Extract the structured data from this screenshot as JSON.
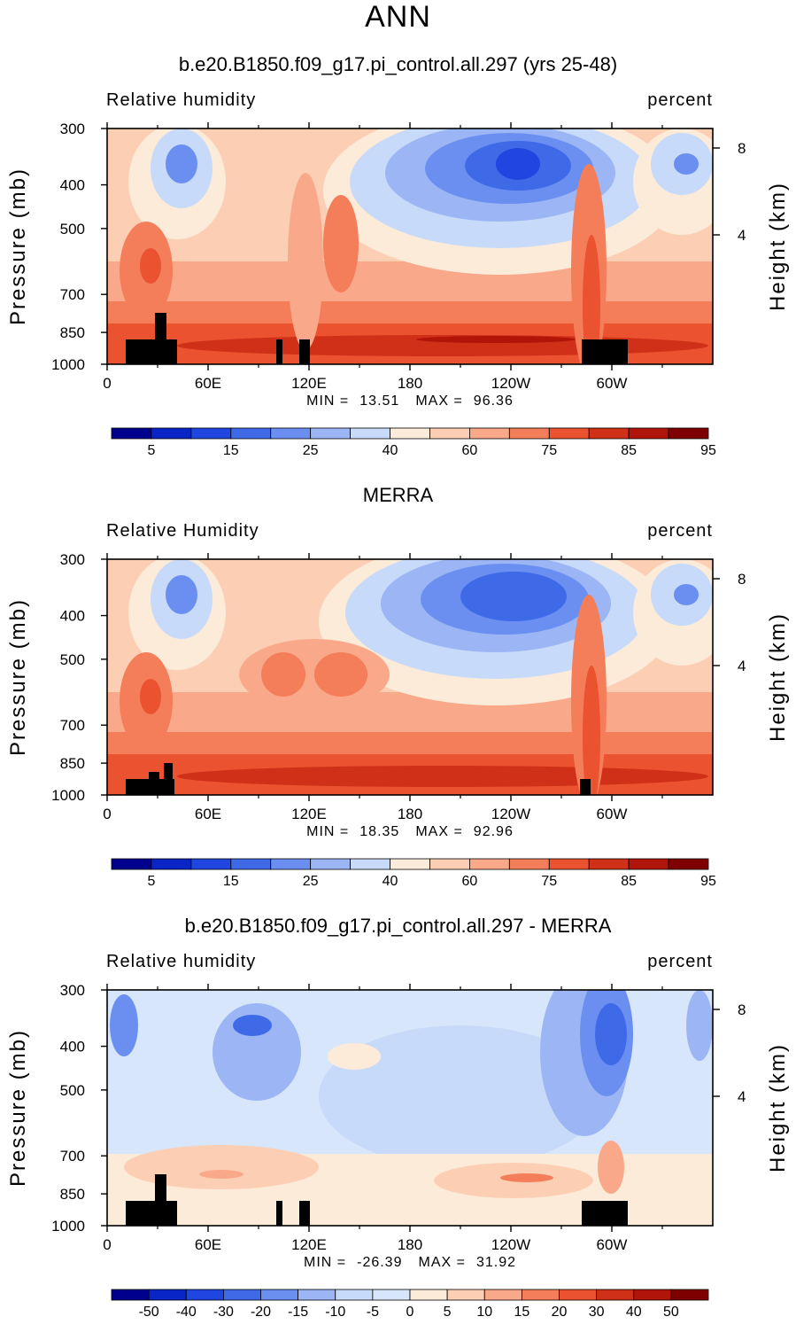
{
  "header": {
    "title": "ANN"
  },
  "chart_data": [
    {
      "type": "heatmap",
      "title": "b.e20.B1850.f09_g17.pi_control.all.297 (yrs 25-48)",
      "left_title": "Relative humidity",
      "right_title": "percent",
      "ylabel": "Pressure (mb)",
      "ylabel_right": "Height (km)",
      "x_ticks": [
        "0",
        "60E",
        "120E",
        "180",
        "120W",
        "60W"
      ],
      "y_ticks": [
        "300",
        "400",
        "500",
        "700",
        "850",
        "1000"
      ],
      "y_ticks_right": [
        "8",
        "4"
      ],
      "min_label": "MIN =",
      "min": "13.51",
      "max_label": "MAX =",
      "max": "96.36",
      "colorbar_labels": [
        "5",
        "15",
        "25",
        "40",
        "60",
        "75",
        "85",
        "95"
      ],
      "colors": [
        "#00008f",
        "#0a25c6",
        "#1f46e0",
        "#3e6ae8",
        "#6a8ff0",
        "#9cb6f5",
        "#c7dafa",
        "#fbebd8",
        "#fccfb5",
        "#f9a98a",
        "#f47e5a",
        "#ea5230",
        "#d03018",
        "#b11408",
        "#7f0000"
      ]
    },
    {
      "type": "heatmap",
      "title": "MERRA",
      "left_title": "Relative Humidity",
      "right_title": "percent",
      "ylabel": "Pressure (mb)",
      "ylabel_right": "Height (km)",
      "x_ticks": [
        "0",
        "60E",
        "120E",
        "180",
        "120W",
        "60W"
      ],
      "y_ticks": [
        "300",
        "400",
        "500",
        "700",
        "850",
        "1000"
      ],
      "y_ticks_right": [
        "8",
        "4"
      ],
      "min_label": "MIN =",
      "min": "18.35",
      "max_label": "MAX =",
      "max": "92.96",
      "colorbar_labels": [
        "5",
        "15",
        "25",
        "40",
        "60",
        "75",
        "85",
        "95"
      ],
      "colors": [
        "#00008f",
        "#0a25c6",
        "#1f46e0",
        "#3e6ae8",
        "#6a8ff0",
        "#9cb6f5",
        "#c7dafa",
        "#fbebd8",
        "#fccfb5",
        "#f9a98a",
        "#f47e5a",
        "#ea5230",
        "#d03018",
        "#b11408",
        "#7f0000"
      ]
    },
    {
      "type": "heatmap",
      "title": "b.e20.B1850.f09_g17.pi_control.all.297 - MERRA",
      "left_title": "Relative humidity",
      "right_title": "percent",
      "ylabel": "Pressure (mb)",
      "ylabel_right": "Height (km)",
      "x_ticks": [
        "0",
        "60E",
        "120E",
        "180",
        "120W",
        "60W"
      ],
      "y_ticks": [
        "300",
        "400",
        "500",
        "700",
        "850",
        "1000"
      ],
      "y_ticks_right": [
        "8",
        "4"
      ],
      "min_label": "MIN =",
      "min": "-26.39",
      "max_label": "MAX =",
      "max": "31.92",
      "colorbar_labels": [
        "-50",
        "-40",
        "-30",
        "-20",
        "-15",
        "-10",
        "-5",
        "0",
        "5",
        "10",
        "15",
        "20",
        "30",
        "40",
        "50"
      ],
      "colors": [
        "#00008f",
        "#0a25c6",
        "#1f46e0",
        "#3e6ae8",
        "#6a8ff0",
        "#9cb6f5",
        "#c7dafa",
        "#d8e6fb",
        "#fbebd8",
        "#fccfb5",
        "#f9a98a",
        "#f47e5a",
        "#ea5230",
        "#d03018",
        "#b11408",
        "#7f0000"
      ]
    }
  ]
}
